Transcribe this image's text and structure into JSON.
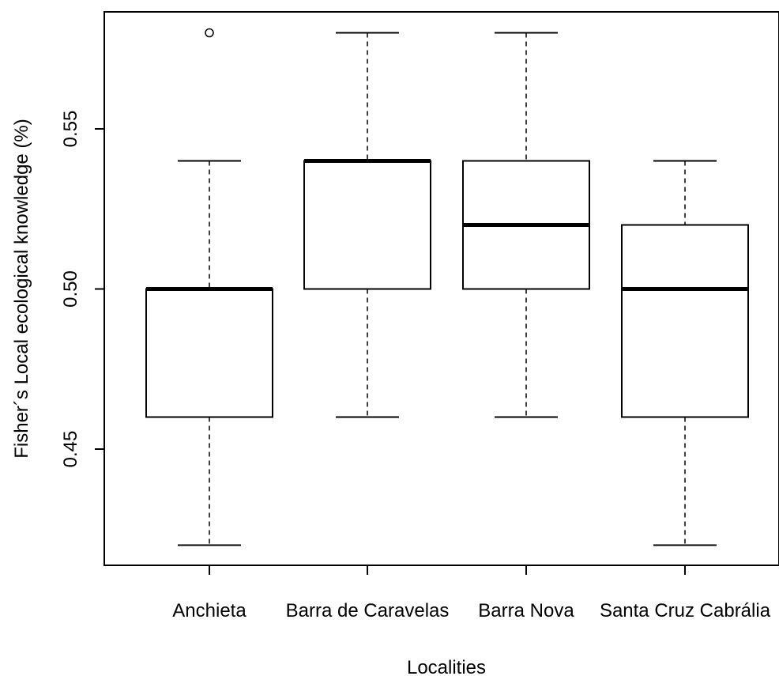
{
  "chart_data": {
    "type": "boxplot",
    "title": "",
    "xlabel": "Localities",
    "ylabel": "Fisher´s Local ecological knowledge (%)",
    "ylim": [
      0.405,
      0.59
    ],
    "yticks": [
      0.45,
      0.5,
      0.55
    ],
    "ytick_labels": [
      "0.45",
      "0.50",
      "0.55"
    ],
    "categories": [
      "Anchieta",
      "Barra de Caravelas",
      "Barra Nova",
      "Santa Cruz Cabrália"
    ],
    "boxes": [
      {
        "name": "Anchieta",
        "whisker_low": 0.42,
        "q1": 0.46,
        "median": 0.5,
        "q3": 0.5,
        "whisker_high": 0.54,
        "outliers": [
          0.58
        ]
      },
      {
        "name": "Barra de Caravelas",
        "whisker_low": 0.46,
        "q1": 0.5,
        "median": 0.54,
        "q3": 0.54,
        "whisker_high": 0.58,
        "outliers": []
      },
      {
        "name": "Barra Nova",
        "whisker_low": 0.46,
        "q1": 0.5,
        "median": 0.52,
        "q3": 0.54,
        "whisker_high": 0.58,
        "outliers": []
      },
      {
        "name": "Santa Cruz Cabrália",
        "whisker_low": 0.42,
        "q1": 0.46,
        "median": 0.5,
        "q3": 0.52,
        "whisker_high": 0.54,
        "outliers": []
      }
    ],
    "grid": false,
    "legend": "none"
  }
}
